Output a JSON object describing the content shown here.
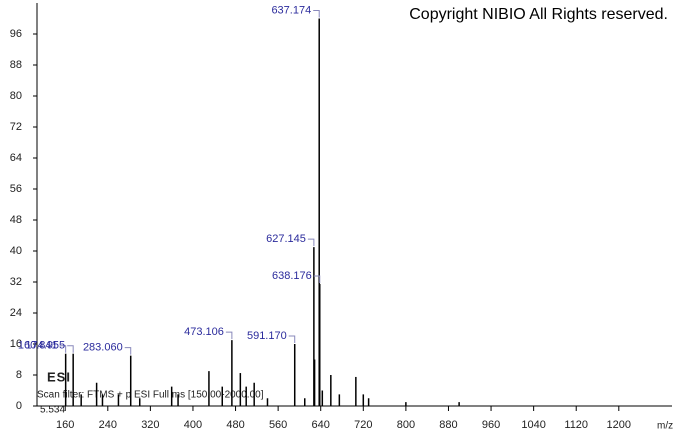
{
  "chart_data": {
    "type": "stick",
    "copyright": "Copyright NIBIO All Rights reserved.",
    "ionization": "ESI",
    "scan_filter": "Scan filter: FTMS + p ESI Full ms [150.00-2000.00]",
    "retention_time": "5.534",
    "x_label": "m/z",
    "color": "#000000",
    "label_color": "#2b2b9c",
    "x": [
      160.841,
      174.955,
      190,
      219,
      230,
      260,
      283.06,
      300,
      360,
      372,
      430,
      455,
      473.106,
      489,
      500,
      515,
      540,
      591.17,
      610,
      627.145,
      628.5,
      637.174,
      638.176,
      643,
      659,
      675,
      706,
      720,
      730,
      800,
      900
    ],
    "values": [
      13.5,
      13.5,
      3,
      6,
      3,
      3,
      13,
      2,
      5,
      3,
      9,
      5,
      17,
      8.5,
      5,
      6,
      2,
      16,
      2,
      41,
      12,
      100,
      31.5,
      4,
      8,
      3,
      7.5,
      3,
      2,
      1,
      1
    ],
    "peak_labels": [
      "160.841",
      "174.955",
      null,
      null,
      null,
      null,
      "283.060",
      null,
      null,
      null,
      null,
      null,
      "473.106",
      null,
      null,
      null,
      null,
      "591.170",
      null,
      "627.145",
      null,
      "637.174",
      "638.176",
      null,
      null,
      null,
      null,
      null,
      null,
      null,
      null
    ],
    "xlim": [
      107,
      1268
    ],
    "xticks": [
      160,
      240,
      320,
      400,
      480,
      560,
      640,
      720,
      800,
      880,
      960,
      1040,
      1120,
      1200
    ],
    "ylim": [
      0,
      104
    ],
    "yticks": [
      0,
      8,
      16,
      24,
      32,
      40,
      48,
      56,
      64,
      72,
      80,
      88,
      96
    ]
  }
}
